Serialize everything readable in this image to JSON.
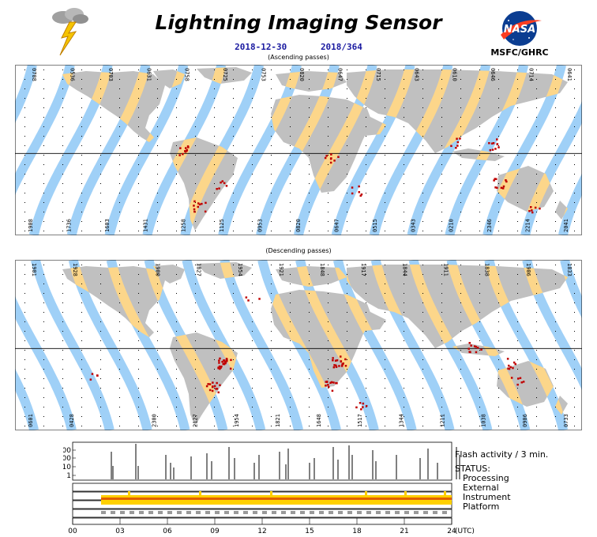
{
  "header": {
    "title": "Lightning Imaging Sensor",
    "date": "2018-12-30",
    "day_of_year": "2018/364",
    "org": "MSFC/GHRC",
    "nasa_logo_text": "NASA"
  },
  "maps": {
    "ascending": {
      "caption": "(Ascending passes)",
      "top_times": [
        "0708",
        "0536",
        "0703",
        "0631",
        "0758",
        "0725",
        "0753",
        "0820",
        "0647",
        "0715",
        "0643",
        "0610",
        "0646",
        "0714",
        "0641"
      ],
      "bottom_times": [
        "1908",
        "1736",
        "1603",
        "1431",
        "1258",
        "1125",
        "0953",
        "0820",
        "0647",
        "0515",
        "0343",
        "0210",
        "2346",
        "2214",
        "2041"
      ]
    },
    "descending": {
      "caption": "(Descending passes)",
      "top_times": [
        "1901",
        "1928",
        "",
        "1900",
        "1827",
        "1954",
        "1921",
        "1848",
        "1917",
        "1844",
        "1911",
        "1838",
        "1906",
        "1833"
      ],
      "bottom_times": [
        "0601",
        "0428",
        "",
        "2300",
        "2127",
        "1954",
        "1821",
        "1648",
        "1517",
        "1344",
        "1211",
        "1038",
        "0906",
        "0733"
      ]
    },
    "colors": {
      "ocean": "#ffffff",
      "land": "#c0c0c0",
      "swath": "#9fd0f7",
      "swath_land": "#fcd68a",
      "flash": "#c00000"
    }
  },
  "timeline": {
    "y_ticks": [
      "1000",
      "100",
      "10",
      "1"
    ],
    "x_ticks": [
      "00",
      "03",
      "06",
      "09",
      "12",
      "15",
      "18",
      "21",
      "24"
    ],
    "x_unit": "(UTC)",
    "legend": {
      "flash": "Flash activity / 3 min.",
      "status": "STATUS:",
      "processing": "Processing",
      "external": "External",
      "instrument": "Instrument",
      "platform": "Platform"
    },
    "status_colors": {
      "ok": "#ffd000",
      "warn": "#e06000",
      "bad": "#c00000"
    }
  }
}
